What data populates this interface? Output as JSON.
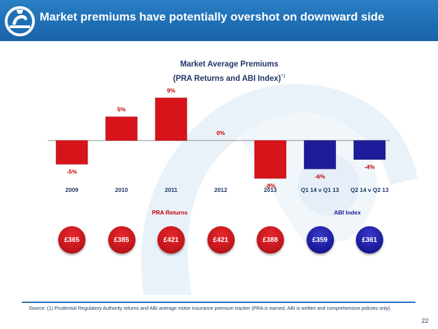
{
  "header": {
    "title": "Market premiums have potentially overshot on downward side",
    "background_color": "#1f6fb5"
  },
  "chart_data": {
    "type": "bar",
    "title_line1": "Market Average Premiums",
    "title_line2": "(PRA Returns and ABI Index)",
    "title_note": "*1",
    "categories": [
      "2009",
      "2010",
      "2011",
      "2012",
      "2013",
      "Q1 14 v Q1 13",
      "Q2 14 v Q2 13"
    ],
    "values": [
      -5,
      5,
      9,
      0,
      -8,
      -6,
      -4
    ],
    "value_labels": [
      "-5%",
      "5%",
      "9%",
      "0%",
      "-8%",
      "-6%",
      "-4%"
    ],
    "series_groups": [
      {
        "name": "PRA Returns",
        "categories": [
          "2009",
          "2010",
          "2011",
          "2012",
          "2013"
        ],
        "color": "#d7141a"
      },
      {
        "name": "ABI Index",
        "categories": [
          "Q1 14 v Q1 13",
          "Q2 14 v Q2 13"
        ],
        "color": "#1c1c9a"
      }
    ],
    "avg_premiums": [
      "£365",
      "£385",
      "£421",
      "£421",
      "£388",
      "£359",
      "£361"
    ],
    "ylim": [
      -10,
      10
    ],
    "grid": false,
    "xlabel": "",
    "ylabel": ""
  },
  "footer": {
    "source": "Source: (1) Prudential Regulatory Authority returns and ABI average motor insurance premium tracker (PRA is earned, ABI is written and comprehensive policies only).",
    "page_number": "22"
  },
  "colors": {
    "pra": "#d7141a",
    "abi": "#1c1c9a",
    "text_dark": "#1f3864"
  }
}
